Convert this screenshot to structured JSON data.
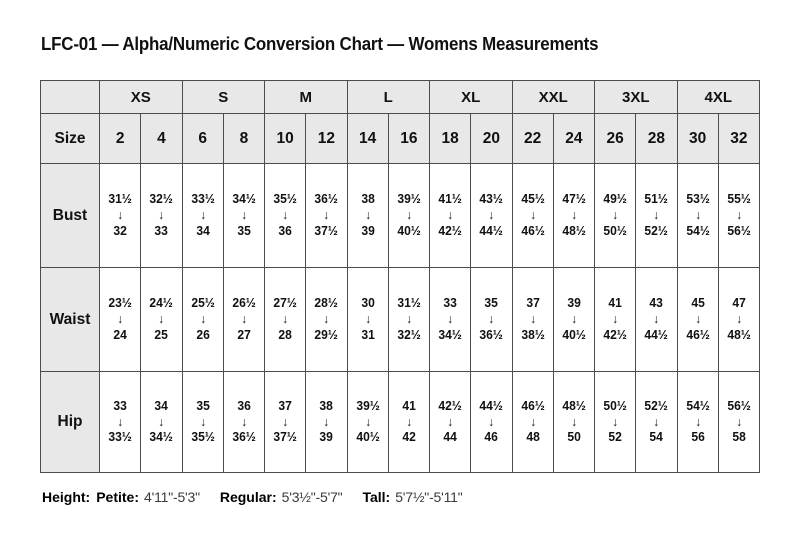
{
  "page": {
    "title": "LFC-01 — Alpha/Numeric Conversion Chart — Womens Measurements"
  },
  "table": {
    "corner_label": "",
    "size_row_label": "Size",
    "alpha_sizes": [
      "XS",
      "S",
      "M",
      "L",
      "XL",
      "XXL",
      "3XL",
      "4XL"
    ],
    "numeric_sizes": [
      "2",
      "4",
      "6",
      "8",
      "10",
      "12",
      "14",
      "16",
      "18",
      "20",
      "22",
      "24",
      "26",
      "28",
      "30",
      "32"
    ],
    "arrow_glyph": "↓",
    "measurement_rows": [
      {
        "label": "Bust",
        "cells": [
          [
            "31½",
            "32"
          ],
          [
            "32½",
            "33"
          ],
          [
            "33½",
            "34"
          ],
          [
            "34½",
            "35"
          ],
          [
            "35½",
            "36"
          ],
          [
            "36½",
            "37½"
          ],
          [
            "38",
            "39"
          ],
          [
            "39½",
            "40½"
          ],
          [
            "41½",
            "42½"
          ],
          [
            "43½",
            "44½"
          ],
          [
            "45½",
            "46½"
          ],
          [
            "47½",
            "48½"
          ],
          [
            "49½",
            "50½"
          ],
          [
            "51½",
            "52½"
          ],
          [
            "53½",
            "54½"
          ],
          [
            "55½",
            "56½"
          ]
        ]
      },
      {
        "label": "Waist",
        "cells": [
          [
            "23½",
            "24"
          ],
          [
            "24½",
            "25"
          ],
          [
            "25½",
            "26"
          ],
          [
            "26½",
            "27"
          ],
          [
            "27½",
            "28"
          ],
          [
            "28½",
            "29½"
          ],
          [
            "30",
            "31"
          ],
          [
            "31½",
            "32½"
          ],
          [
            "33",
            "34½"
          ],
          [
            "35",
            "36½"
          ],
          [
            "37",
            "38½"
          ],
          [
            "39",
            "40½"
          ],
          [
            "41",
            "42½"
          ],
          [
            "43",
            "44½"
          ],
          [
            "45",
            "46½"
          ],
          [
            "47",
            "48½"
          ]
        ]
      },
      {
        "label": "Hip",
        "cells": [
          [
            "33",
            "33½"
          ],
          [
            "34",
            "34½"
          ],
          [
            "35",
            "35½"
          ],
          [
            "36",
            "36½"
          ],
          [
            "37",
            "37½"
          ],
          [
            "38",
            "39"
          ],
          [
            "39½",
            "40½"
          ],
          [
            "41",
            "42"
          ],
          [
            "42½",
            "44"
          ],
          [
            "44½",
            "46"
          ],
          [
            "46½",
            "48"
          ],
          [
            "48½",
            "50"
          ],
          [
            "50½",
            "52"
          ],
          [
            "52½",
            "54"
          ],
          [
            "54½",
            "56"
          ],
          [
            "56½",
            "58"
          ]
        ]
      }
    ]
  },
  "footer": {
    "height_label": "Height:",
    "segments": [
      {
        "label": "Petite:",
        "value": "4'11\"-5'3\""
      },
      {
        "label": "Regular:",
        "value": "5'3½\"-5'7\""
      },
      {
        "label": "Tall:",
        "value": "5'7½\"-5'11\""
      }
    ]
  },
  "colors": {
    "header_bg": "#e8e8e8",
    "border": "#4d4d4d",
    "text": "#111111",
    "footer_value_text": "#3a3a3a"
  }
}
